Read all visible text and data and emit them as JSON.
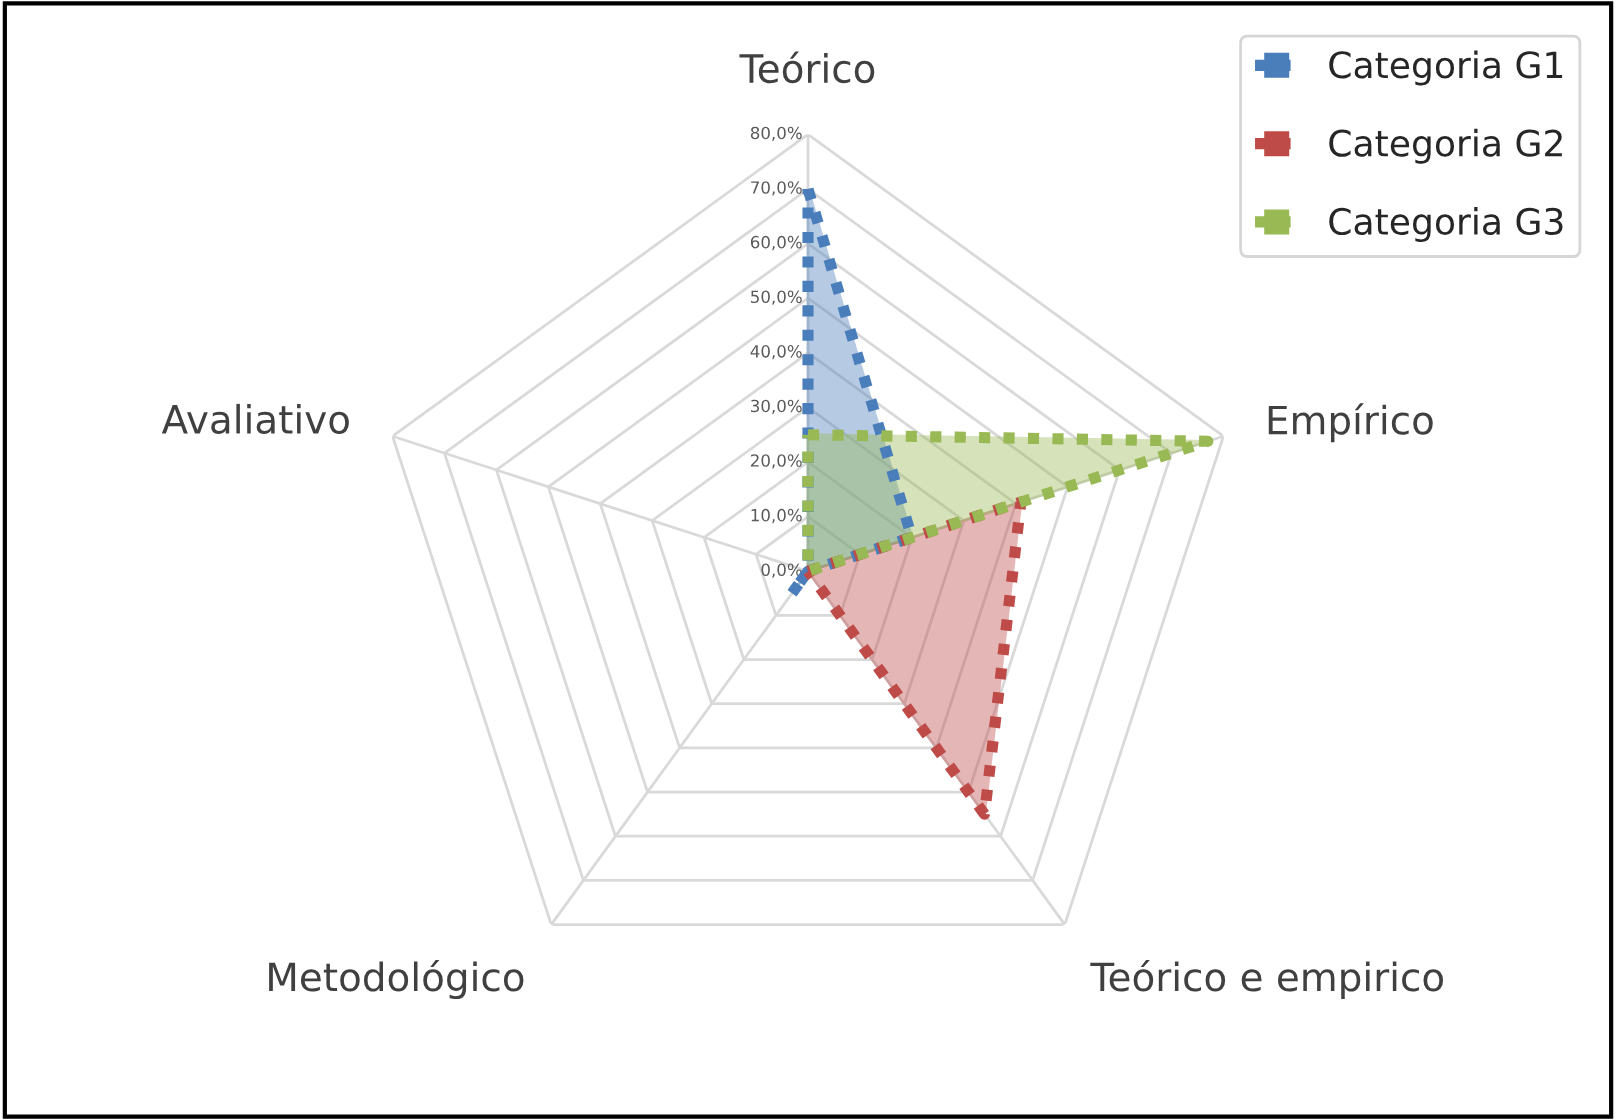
{
  "chart_data": {
    "type": "radar",
    "categories": [
      "Teórico",
      "Empírico",
      "Teórico e empirico",
      "Metodológico",
      "Avaliativo"
    ],
    "series": [
      {
        "name": "Categoria G1",
        "color": "#4a7ebb",
        "values": [
          70,
          20,
          0,
          5,
          0
        ]
      },
      {
        "name": "Categoria G2",
        "color": "#be4b48",
        "values": [
          0,
          41,
          55,
          0,
          0
        ]
      },
      {
        "name": "Categoria G3",
        "color": "#98b954",
        "values": [
          25,
          77,
          0,
          0,
          0
        ]
      }
    ],
    "ylim": [
      0,
      80
    ],
    "yticks": [
      {
        "value": 0,
        "label": "0,0%"
      },
      {
        "value": 10,
        "label": "10,0%"
      },
      {
        "value": 20,
        "label": "20,0%"
      },
      {
        "value": 30,
        "label": "30,0%"
      },
      {
        "value": 40,
        "label": "40,0%"
      },
      {
        "value": 50,
        "label": "50,0%"
      },
      {
        "value": 60,
        "label": "60,0%"
      },
      {
        "value": 70,
        "label": "70,0%"
      },
      {
        "value": 80,
        "label": "80,0%"
      }
    ],
    "legend": "top right",
    "marker": "square",
    "line_style": "dotted",
    "grid": true
  }
}
